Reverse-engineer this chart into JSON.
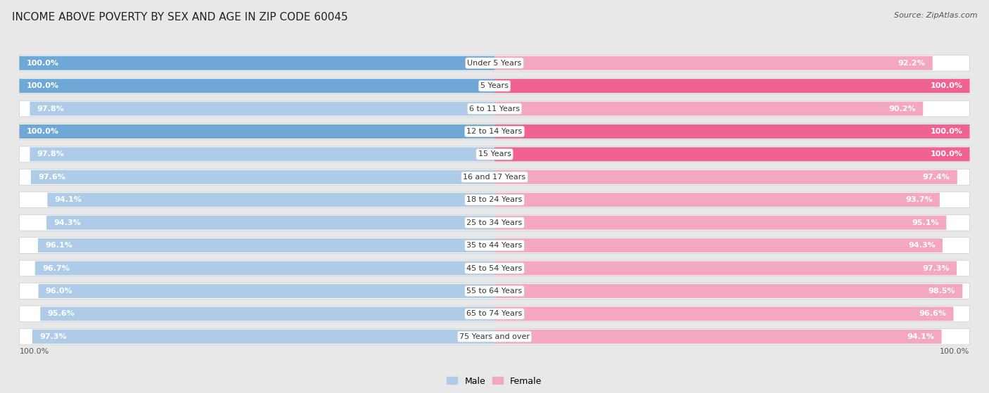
{
  "title": "INCOME ABOVE POVERTY BY SEX AND AGE IN ZIP CODE 60045",
  "source": "Source: ZipAtlas.com",
  "categories": [
    "Under 5 Years",
    "5 Years",
    "6 to 11 Years",
    "12 to 14 Years",
    "15 Years",
    "16 and 17 Years",
    "18 to 24 Years",
    "25 to 34 Years",
    "35 to 44 Years",
    "45 to 54 Years",
    "55 to 64 Years",
    "65 to 74 Years",
    "75 Years and over"
  ],
  "male_values": [
    100.0,
    100.0,
    97.8,
    100.0,
    97.8,
    97.6,
    94.1,
    94.3,
    96.1,
    96.7,
    96.0,
    95.6,
    97.3
  ],
  "female_values": [
    92.2,
    100.0,
    90.2,
    100.0,
    100.0,
    97.4,
    93.7,
    95.1,
    94.3,
    97.3,
    98.5,
    96.6,
    94.1
  ],
  "male_color_dark": "#6fa8d6",
  "male_color_light": "#aecce8",
  "female_color_dark": "#f06292",
  "female_color_light": "#f4a8bf",
  "male_label": "Male",
  "female_label": "Female",
  "bg_color": "#e8e8e8",
  "row_bg_color": "#f0f0f0",
  "title_fontsize": 11,
  "source_fontsize": 8,
  "label_fontsize": 8,
  "category_fontsize": 8,
  "value_fontsize": 8
}
